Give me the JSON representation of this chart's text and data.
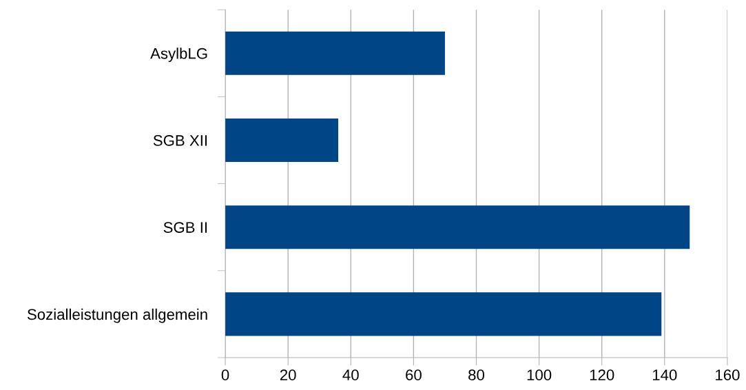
{
  "chart_data": {
    "type": "bar",
    "orientation": "horizontal",
    "categories": [
      "AsylbLG",
      "SGB XII",
      "SGB II",
      "Sozialleistungen allgemein"
    ],
    "values": [
      70,
      36,
      148,
      139
    ],
    "color": "#004586",
    "xlim": [
      0,
      160
    ],
    "xticks": [
      0,
      20,
      40,
      60,
      80,
      100,
      120,
      140,
      160
    ],
    "grid": "x",
    "legend": false
  }
}
